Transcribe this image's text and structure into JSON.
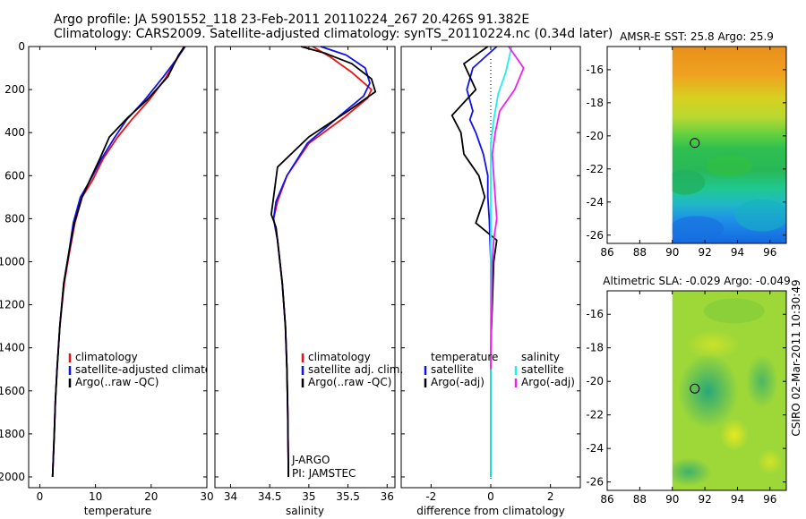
{
  "header": {
    "line1": "Argo profile: JA 5901552_118 23-Feb-2011 20110224_267 20.426S 91.382E",
    "line2": "Climatology: CARS2009. Satellite-adjusted climatology: synTS_20110224.nc (0.34d later)"
  },
  "colors": {
    "clim": "#ee1111",
    "sat": "#1111ee",
    "argo": "#000000",
    "sal_sat": "#22eeee",
    "sal_argo": "#ee22ee"
  },
  "chart_data": [
    {
      "type": "line",
      "name": "temperature-profile",
      "xlabel": "temperature",
      "xlim": [
        -2,
        30
      ],
      "ylim": [
        2050,
        0
      ],
      "xticks": [
        0,
        10,
        20,
        30
      ],
      "xticklabels": [
        "0",
        "10",
        "20",
        "30"
      ],
      "yticks": [
        0,
        200,
        400,
        600,
        800,
        1000,
        1200,
        1400,
        1600,
        1800,
        2000
      ],
      "yticklabels": [
        "0",
        "200",
        "400",
        "600",
        "800",
        "1000",
        "1200",
        "1400",
        "1600",
        "1800",
        "2000"
      ],
      "legend": [
        "climatology",
        "satellite-adjusted climatology",
        "Argo(..raw -QC)"
      ],
      "series": [
        {
          "name": "climatology",
          "color": "#ee1111",
          "x": [
            25.9,
            24.6,
            22.5,
            19.6,
            16.5,
            14.0,
            11.4,
            9.5,
            7.6,
            6.3,
            5.3,
            4.4,
            3.6,
            3.1,
            2.8,
            2.6,
            2.3
          ],
          "depth": [
            0,
            60,
            150,
            250,
            340,
            420,
            520,
            620,
            700,
            820,
            960,
            1100,
            1300,
            1500,
            1650,
            1800,
            2000
          ]
        },
        {
          "name": "satellite-adjusted climatology",
          "color": "#1111ee",
          "x": [
            26.1,
            24.8,
            22.2,
            18.8,
            15.6,
            13.5,
            11.1,
            9.1,
            7.3,
            6.0,
            5.2,
            4.3,
            3.6,
            3.1,
            2.8,
            2.6,
            2.3
          ],
          "depth": [
            0,
            50,
            140,
            250,
            340,
            420,
            520,
            620,
            700,
            820,
            960,
            1100,
            1300,
            1500,
            1650,
            1800,
            2000
          ]
        },
        {
          "name": "Argo(..raw -QC)",
          "color": "#000000",
          "x": [
            26.0,
            24.9,
            23.0,
            19.2,
            15.8,
            12.5,
            10.8,
            9.0,
            7.6,
            6.2,
            5.2,
            4.3,
            3.6,
            3.1,
            2.8,
            2.6,
            2.3
          ],
          "depth": [
            0,
            40,
            140,
            250,
            330,
            420,
            520,
            620,
            700,
            820,
            960,
            1100,
            1300,
            1500,
            1650,
            1800,
            2000
          ]
        }
      ]
    },
    {
      "type": "line",
      "name": "salinity-profile",
      "xlabel": "salinity",
      "xlim": [
        33.8,
        36.1
      ],
      "ylim": [
        2050,
        0
      ],
      "xticks": [
        34,
        34.5,
        35,
        35.5,
        36
      ],
      "xticklabels": [
        "34",
        "34.5",
        "35",
        "35.5",
        "36"
      ],
      "legend": [
        "climatology",
        "satellite adj. clim.",
        "Argo(..raw -QC)"
      ],
      "annotation": [
        "J-ARGO",
        "PI: JAMSTEC"
      ],
      "series": [
        {
          "name": "climatology",
          "color": "#ee1111",
          "x": [
            35.05,
            35.28,
            35.55,
            35.8,
            35.75,
            35.45,
            35.0,
            34.72,
            34.6,
            34.55,
            34.6,
            34.66,
            34.7,
            34.72,
            34.73,
            34.74
          ],
          "depth": [
            0,
            50,
            120,
            200,
            240,
            330,
            450,
            600,
            720,
            800,
            900,
            1100,
            1300,
            1500,
            1700,
            2000
          ]
        },
        {
          "name": "satellite adj. clim.",
          "color": "#1111ee",
          "x": [
            35.15,
            35.48,
            35.72,
            35.78,
            35.7,
            35.4,
            34.98,
            34.72,
            34.58,
            34.55,
            34.6,
            34.66,
            34.7,
            34.72,
            34.73,
            34.74
          ],
          "depth": [
            0,
            40,
            100,
            170,
            230,
            320,
            450,
            600,
            720,
            800,
            900,
            1100,
            1300,
            1500,
            1700,
            2000
          ]
        },
        {
          "name": "Argo(..raw -QC)",
          "color": "#000000",
          "x": [
            34.9,
            35.2,
            35.55,
            35.8,
            35.85,
            35.5,
            35.0,
            34.6,
            34.55,
            34.52,
            34.58,
            34.6,
            34.66,
            34.7,
            34.72,
            34.73,
            34.74
          ],
          "depth": [
            0,
            30,
            80,
            150,
            210,
            300,
            420,
            560,
            700,
            780,
            840,
            900,
            1100,
            1300,
            1500,
            1700,
            2000
          ]
        }
      ]
    },
    {
      "type": "line",
      "name": "difference-profile",
      "xlabel": "difference from climatology",
      "xlim": [
        -3,
        3
      ],
      "ylim": [
        2050,
        0
      ],
      "xticks": [
        -2,
        0,
        2
      ],
      "xticklabels": [
        "-2",
        "0",
        "2"
      ],
      "legend_left": [
        "temperature",
        "satellite",
        "Argo(-adj)"
      ],
      "legend_right": [
        "salinity",
        "satellite",
        "Argo(-adj)"
      ],
      "series": [
        {
          "name": "temperature satellite",
          "color": "#1111ee",
          "x": [
            0.2,
            -0.6,
            -0.8,
            -0.6,
            -0.7,
            -0.5,
            -0.25,
            -0.1,
            -0.1,
            -0.05,
            0.0,
            0.0,
            0.0,
            0.0
          ],
          "depth": [
            0,
            100,
            200,
            300,
            340,
            400,
            500,
            600,
            700,
            800,
            1000,
            1400,
            1800,
            2000
          ]
        },
        {
          "name": "temperature Argo(-adj)",
          "color": "#000000",
          "x": [
            -0.1,
            -0.9,
            -0.5,
            -1.3,
            -1.0,
            -0.9,
            -0.4,
            -0.2,
            -0.5,
            0.2,
            0.1,
            0.05,
            0.0,
            0.0,
            0.0
          ],
          "depth": [
            0,
            80,
            200,
            320,
            400,
            500,
            600,
            700,
            820,
            900,
            1000,
            1200,
            1400,
            1800,
            2000
          ]
        },
        {
          "name": "salinity satellite",
          "color": "#22eeee",
          "x": [
            0.7,
            0.5,
            0.25,
            0.1,
            0.0,
            0.0,
            0.0,
            0.0,
            0.0
          ],
          "depth": [
            0,
            120,
            220,
            340,
            450,
            600,
            900,
            1500,
            2000
          ]
        },
        {
          "name": "salinity Argo(-adj)",
          "color": "#ee22ee",
          "x": [
            0.6,
            1.1,
            0.8,
            0.3,
            0.15,
            0.05,
            0.1,
            0.2,
            0.1,
            0.05,
            0.0
          ],
          "depth": [
            0,
            100,
            200,
            300,
            400,
            500,
            600,
            800,
            900,
            1000,
            1500
          ]
        }
      ]
    },
    {
      "type": "heatmap",
      "name": "sst-map",
      "title": "AMSR-E SST: 25.8 Argo: 25.9",
      "xlim": [
        86,
        97
      ],
      "ylim": [
        -26.5,
        -14.6
      ],
      "data_xlim": [
        90,
        97
      ],
      "xticks": [
        86,
        88,
        90,
        92,
        94,
        96
      ],
      "xticklabels": [
        "86",
        "88",
        "90",
        "92",
        "94",
        "96"
      ],
      "yticks": [
        -16,
        -18,
        -20,
        -22,
        -24,
        -26
      ],
      "yticklabels": [
        "-16",
        "-18",
        "-20",
        "-22",
        "-24",
        "-26"
      ],
      "marker": [
        91.38,
        -20.43
      ]
    },
    {
      "type": "heatmap",
      "name": "sla-map",
      "title": "Altimetric SLA: -0.029 Argo: -0.049",
      "xlim": [
        86,
        97
      ],
      "ylim": [
        -26.5,
        -14.6
      ],
      "data_xlim": [
        90,
        97
      ],
      "xticks": [
        86,
        88,
        90,
        92,
        94,
        96
      ],
      "xticklabels": [
        "86",
        "88",
        "90",
        "92",
        "94",
        "96"
      ],
      "yticks": [
        -16,
        -18,
        -20,
        -22,
        -24,
        -26
      ],
      "yticklabels": [
        "-16",
        "-18",
        "-20",
        "-22",
        "-24",
        "-26"
      ],
      "marker": [
        91.38,
        -20.43
      ]
    }
  ],
  "footer_vertical": "CSIRO 02-Mar-2011 10:30:49"
}
